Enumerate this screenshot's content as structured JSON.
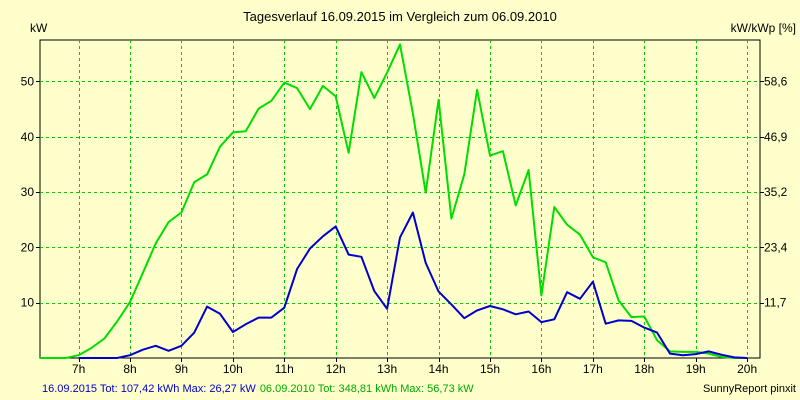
{
  "chart_data": {
    "type": "line",
    "title": "Tagesverlauf 16.09.2015 im Vergleich zum 06.09.2010",
    "ylabel_left": "kW",
    "ylabel_right": "kW/kWp [%]",
    "x_ticks": [
      "7h",
      "8h",
      "9h",
      "10h",
      "11h",
      "12h",
      "13h",
      "14h",
      "15h",
      "16h",
      "17h",
      "18h",
      "19h",
      "20h"
    ],
    "x_tick_values": [
      7,
      8,
      9,
      10,
      11,
      12,
      13,
      14,
      15,
      16,
      17,
      18,
      19,
      20
    ],
    "xlim": [
      6.25,
      20.25
    ],
    "ylim": [
      0,
      57.5
    ],
    "y_ticks": [
      "10",
      "20",
      "30",
      "40",
      "50"
    ],
    "y_tick_values": [
      10,
      20,
      30,
      40,
      50
    ],
    "y_ticks_right": [
      "11,7",
      "23,4",
      "35,2",
      "46,9",
      "58,6"
    ],
    "grid": true,
    "series": [
      {
        "name": "16.09.2015",
        "color": "#0000cc",
        "x": [
          7.0,
          7.25,
          7.5,
          7.75,
          8.0,
          8.25,
          8.5,
          8.75,
          9.0,
          9.25,
          9.5,
          9.75,
          10.0,
          10.25,
          10.5,
          10.75,
          11.0,
          11.25,
          11.5,
          11.75,
          12.0,
          12.25,
          12.5,
          12.75,
          13.0,
          13.25,
          13.5,
          13.75,
          14.0,
          14.25,
          14.5,
          14.75,
          15.0,
          15.25,
          15.5,
          15.75,
          16.0,
          16.25,
          16.5,
          16.75,
          17.0,
          17.25,
          17.5,
          17.75,
          18.0,
          18.25,
          18.5,
          18.75,
          19.0,
          19.25,
          19.5,
          19.75,
          20.0
        ],
        "y": [
          0.0,
          0.0,
          0.0,
          0.0,
          0.5,
          1.5,
          2.2,
          1.3,
          2.2,
          4.6,
          9.3,
          8.0,
          4.7,
          6.1,
          7.3,
          7.3,
          9.1,
          16.1,
          19.8,
          22.0,
          23.8,
          18.7,
          18.3,
          12.1,
          8.9,
          21.8,
          26.3,
          17.2,
          12.0,
          9.7,
          7.2,
          8.6,
          9.4,
          8.8,
          7.9,
          8.4,
          6.5,
          7.0,
          11.9,
          10.7,
          13.8,
          6.2,
          6.8,
          6.7,
          5.5,
          4.6,
          0.8,
          0.5,
          0.7,
          1.2,
          0.6,
          0.1,
          0.0
        ]
      },
      {
        "name": "06.09.2010",
        "color": "#00dd00",
        "x": [
          6.25,
          6.5,
          6.75,
          7.0,
          7.25,
          7.5,
          7.75,
          8.0,
          8.25,
          8.5,
          8.75,
          9.0,
          9.25,
          9.5,
          9.75,
          10.0,
          10.25,
          10.5,
          10.75,
          11.0,
          11.25,
          11.5,
          11.75,
          12.0,
          12.25,
          12.5,
          12.75,
          13.0,
          13.25,
          13.5,
          13.75,
          14.0,
          14.25,
          14.5,
          14.75,
          15.0,
          15.25,
          15.5,
          15.75,
          16.0,
          16.25,
          16.5,
          16.75,
          17.0,
          17.25,
          17.5,
          17.75,
          18.0,
          18.25,
          18.5,
          18.75,
          19.0,
          19.25,
          19.5,
          19.75,
          20.0
        ],
        "y": [
          0.0,
          0.0,
          0.0,
          0.5,
          1.8,
          3.5,
          6.6,
          10.1,
          15.4,
          20.7,
          24.6,
          26.3,
          31.8,
          33.2,
          38.2,
          40.8,
          41.0,
          45.1,
          46.5,
          49.8,
          48.8,
          45.0,
          49.2,
          47.3,
          37.1,
          51.7,
          47.0,
          51.6,
          56.7,
          44.2,
          29.9,
          46.7,
          25.2,
          33.2,
          48.5,
          36.6,
          37.4,
          27.6,
          34.0,
          11.3,
          27.3,
          24.1,
          22.3,
          18.2,
          17.3,
          10.4,
          7.4,
          7.5,
          3.2,
          1.2,
          1.1,
          1.1,
          0.8,
          0.2,
          0.0,
          0.0
        ]
      }
    ]
  },
  "footer": {
    "line1_blue": "16.09.2015 Tot: 107,42 kWh Max: 26,27 kW",
    "line1_green": "06.09.2010 Tot: 348,81 kWh Max: 56,73 kW",
    "credit": "SunnyReport pinxit"
  }
}
